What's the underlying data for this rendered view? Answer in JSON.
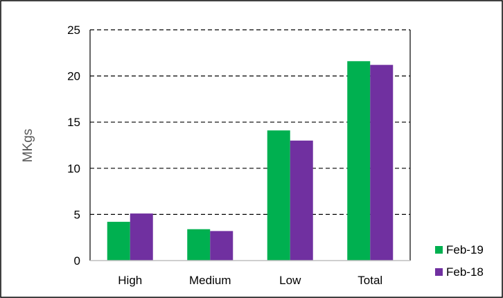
{
  "chart_data": {
    "type": "bar",
    "title": "",
    "xlabel": "",
    "ylabel": "MKgs",
    "ylim": [
      0,
      25
    ],
    "yticks": [
      0,
      5,
      10,
      15,
      20,
      25
    ],
    "grid": true,
    "legend_position": "bottom-right",
    "categories": [
      "High",
      "Medium",
      "Low",
      "Total"
    ],
    "series": [
      {
        "name": "Feb-19",
        "color": "#00b050",
        "values": [
          4.2,
          3.4,
          14.1,
          21.6
        ]
      },
      {
        "name": "Feb-18",
        "color": "#7030a0",
        "values": [
          5.1,
          3.2,
          13.0,
          21.2
        ]
      }
    ]
  }
}
